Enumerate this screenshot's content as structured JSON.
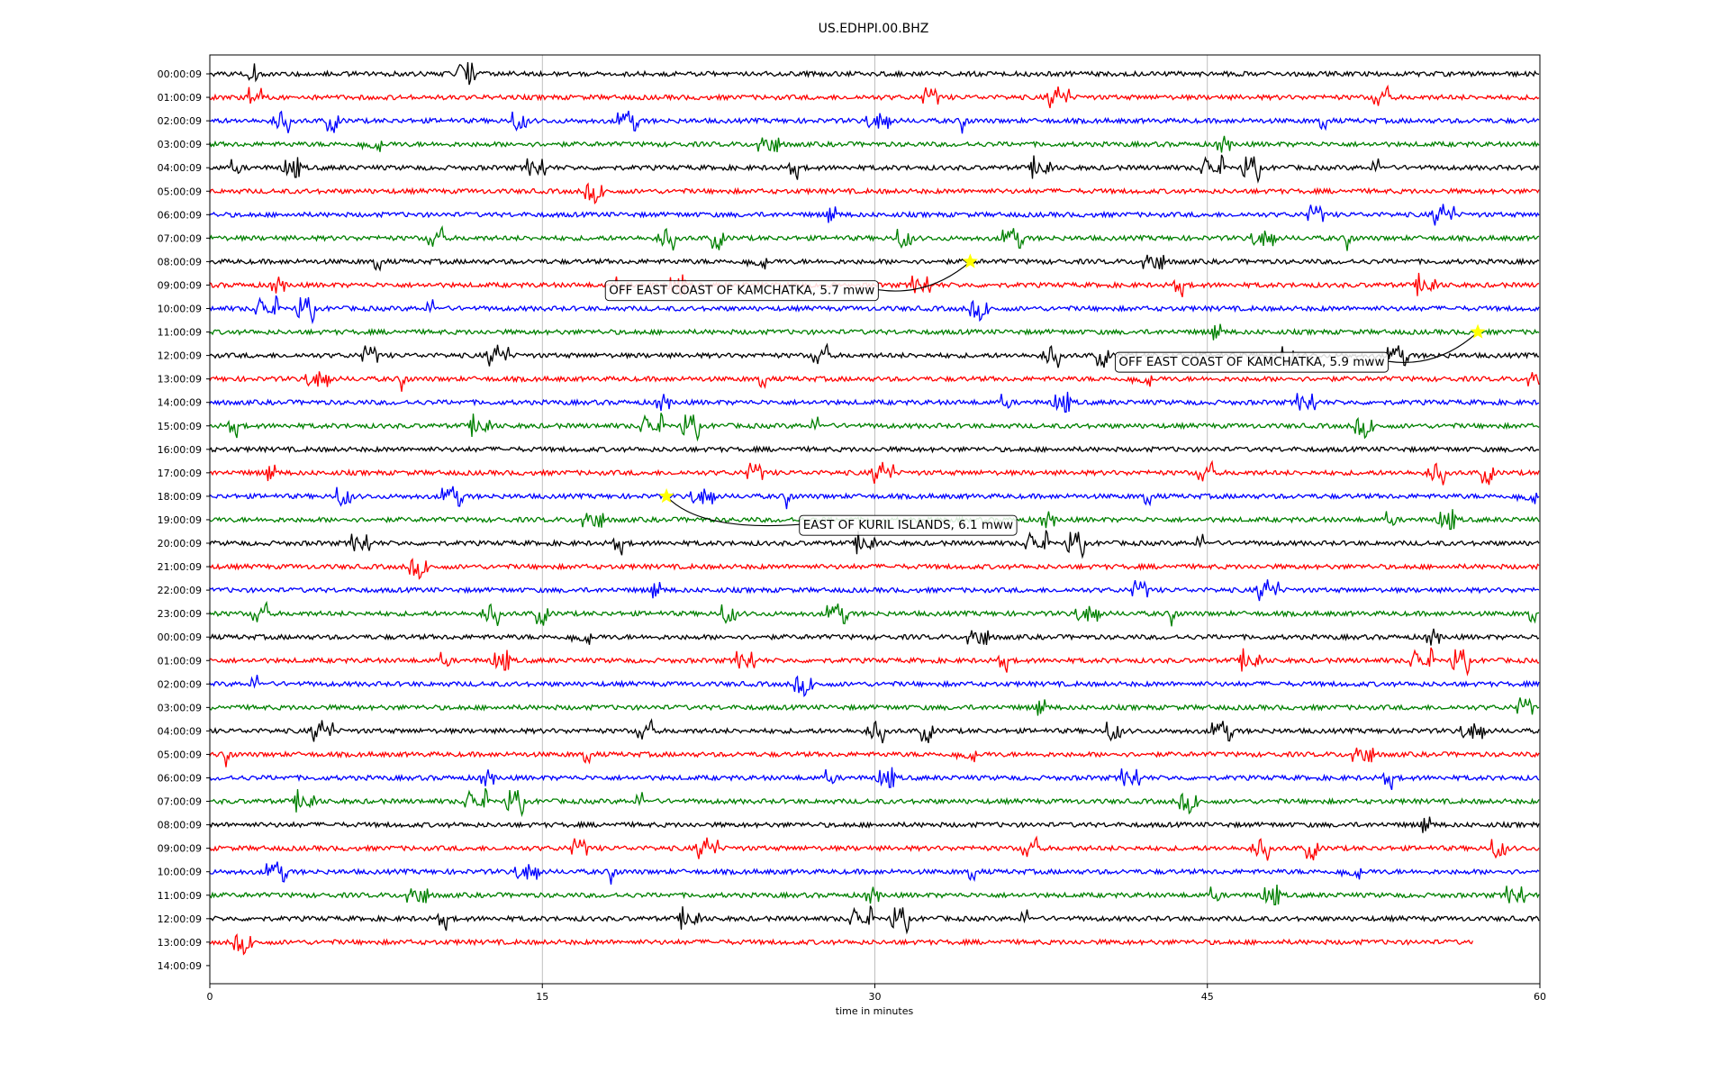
{
  "chart_data": {
    "type": "line",
    "title": "US.EDHPI.00.BHZ",
    "xlabel": "time in minutes",
    "xlim": [
      0,
      60
    ],
    "x_ticks": [
      0,
      15,
      30,
      45,
      60
    ],
    "grid": "vertical",
    "row_labels": [
      "00:00:09",
      "01:00:09",
      "02:00:09",
      "03:00:09",
      "04:00:09",
      "05:00:09",
      "06:00:09",
      "07:00:09",
      "08:00:09",
      "09:00:09",
      "10:00:09",
      "11:00:09",
      "12:00:09",
      "13:00:09",
      "14:00:09",
      "15:00:09",
      "16:00:09",
      "17:00:09",
      "18:00:09",
      "19:00:09",
      "20:00:09",
      "21:00:09",
      "22:00:09",
      "23:00:09",
      "00:00:09",
      "01:00:09",
      "02:00:09",
      "03:00:09",
      "04:00:09",
      "05:00:09",
      "06:00:09",
      "07:00:09",
      "08:00:09",
      "09:00:09",
      "10:00:09",
      "11:00:09",
      "12:00:09",
      "13:00:09",
      "14:00:09"
    ],
    "trace_colors": [
      "#000000",
      "#ff0000",
      "#0000ff",
      "#008000"
    ],
    "last_trace_end_minute": 57,
    "events": [
      {
        "label": "OFF EAST COAST OF KAMCHATKA, 5.7 mww",
        "row": 8,
        "minute": 34.3,
        "label_minute": 24.0,
        "label_row": 9.2
      },
      {
        "label": "OFF EAST COAST OF KAMCHATKA, 5.9 mww",
        "row": 11,
        "minute": 57.2,
        "label_minute": 47.0,
        "label_row": 12.25
      },
      {
        "label": "EAST OF KURIL ISLANDS, 6.1 mww",
        "row": 18,
        "minute": 20.6,
        "label_minute": 31.5,
        "label_row": 19.2
      }
    ],
    "event_marker_color": "#ffff00"
  }
}
